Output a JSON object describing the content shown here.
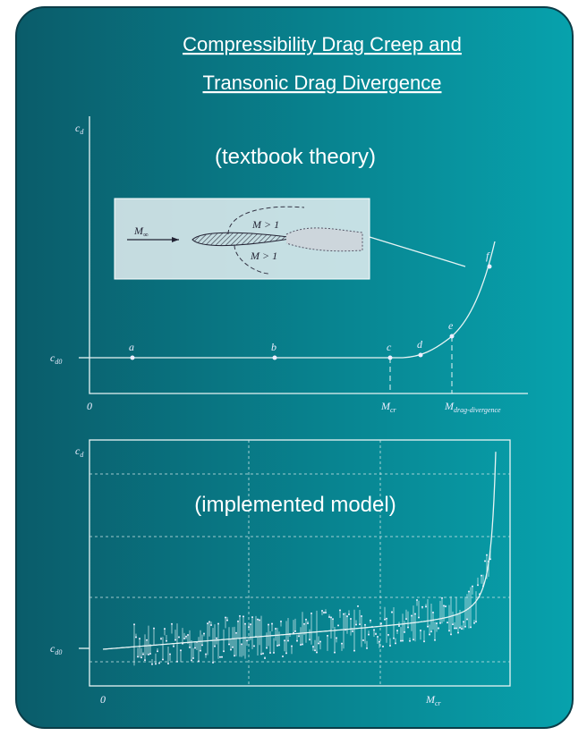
{
  "title": {
    "lines": [
      "Compressibility Drag Creep and",
      "Transonic Drag Divergence"
    ]
  },
  "theory_panel": {
    "caption": "(textbook theory)",
    "y_label": {
      "main": "c",
      "sub": "d"
    },
    "baseline_label": {
      "main": "c",
      "sub": "d0"
    },
    "origin_label": "0",
    "x_markers": [
      {
        "main": "M",
        "sub": "cr"
      },
      {
        "main": "M",
        "sub": "drag-divergence"
      }
    ],
    "points": [
      "a",
      "b",
      "c",
      "d",
      "e",
      "f"
    ],
    "inset": {
      "freestream": {
        "main": "M",
        "sub": "∞"
      },
      "region_labels": [
        "M > 1",
        "M > 1"
      ]
    }
  },
  "model_panel": {
    "caption": "(implemented model)",
    "y_label": {
      "main": "c",
      "sub": "d"
    },
    "baseline_label": {
      "main": "c",
      "sub": "d0"
    },
    "origin_label": "0",
    "x_marker": {
      "main": "M",
      "sub": "cr"
    }
  }
}
